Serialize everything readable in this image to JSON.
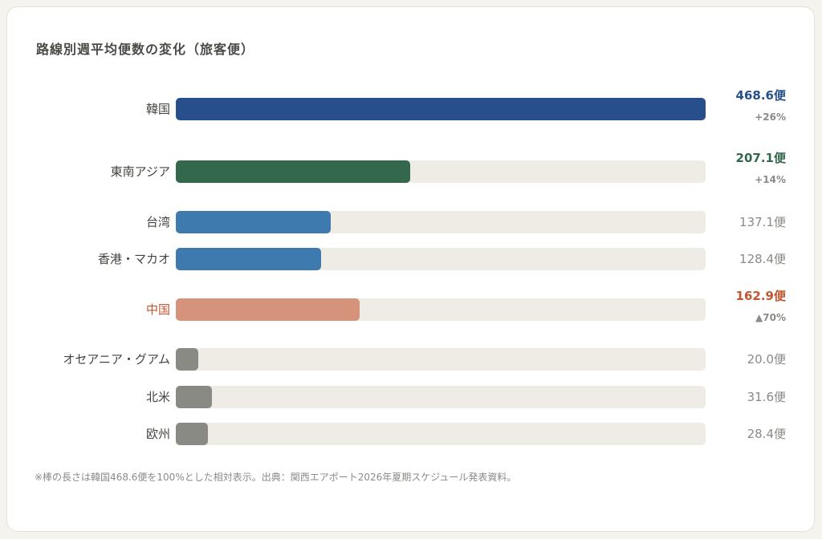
{
  "chart_data": {
    "type": "bar",
    "orientation": "horizontal",
    "title": "路線別週平均便数の変化（旅客便）",
    "unit": "便",
    "max_reference": 468.6,
    "categories": [
      "韓国",
      "東南アジア",
      "台湾",
      "香港・マカオ",
      "中国",
      "オセアニア・グアム",
      "北米",
      "欧州"
    ],
    "values": [
      468.6,
      207.1,
      137.1,
      128.4,
      162.9,
      20.0,
      31.6,
      28.4
    ],
    "value_labels": [
      "468.6便",
      "207.1便",
      "137.1便",
      "128.4便",
      "162.9便",
      "20.0便",
      "31.6便",
      "28.4便"
    ],
    "changes": [
      "+26%",
      "+14%",
      null,
      null,
      "▲70%",
      null,
      null,
      null
    ],
    "bar_colors": [
      "#274f8c",
      "#33684d",
      "#3f7aae",
      "#3f7aae",
      "#d4937a",
      "#8a8a84",
      "#8a8a84",
      "#8a8a84"
    ],
    "value_colors": [
      "#274f8c",
      "#33684d",
      null,
      null,
      "#c4552f",
      null,
      null,
      null
    ],
    "label_colors": [
      null,
      null,
      null,
      null,
      "#c4552f",
      null,
      null,
      null
    ],
    "note": "※棒の長さは韓国468.6便を100%とした相対表示。出典：関西エアポート2026年夏期スケジュール発表資料。"
  }
}
